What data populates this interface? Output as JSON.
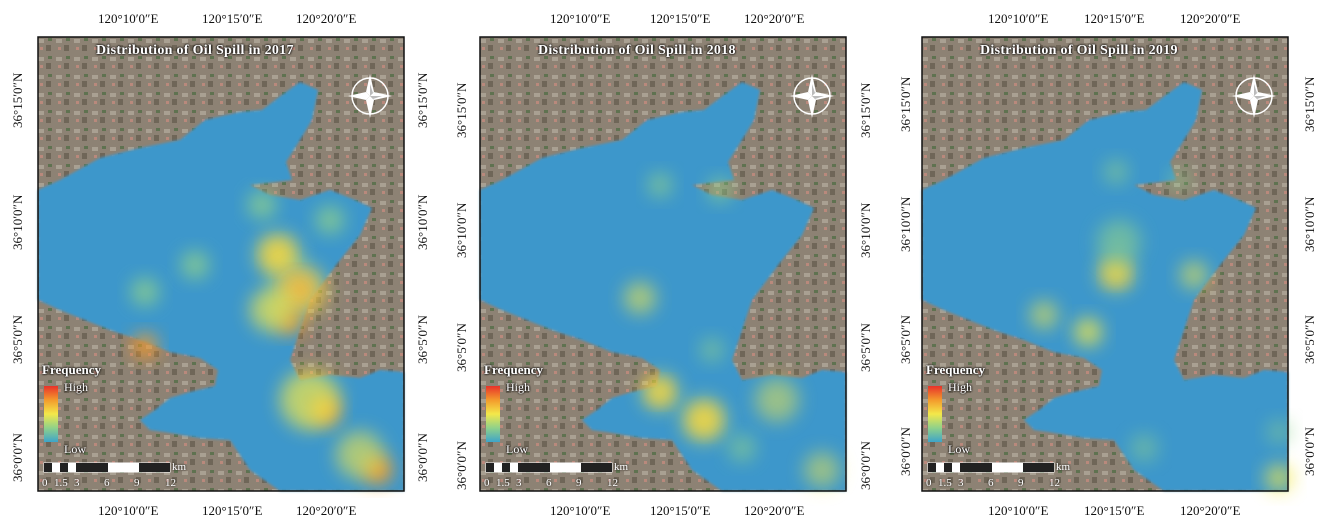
{
  "colors": {
    "water": "#3d97cb",
    "land": "#8d8274",
    "hot_high": "#e8322a",
    "hot_mid": "#f3e84a",
    "hot_low": "#8fd18a"
  },
  "axis": {
    "top_ticks": [
      "120°10′0″E",
      "120°15′0″E",
      "120°20′0″E"
    ],
    "bottom_ticks": [
      "120°10′0″E",
      "120°15′0″E",
      "120°20′0″E"
    ],
    "left_ticks": [
      "36°15′0″N",
      "36°10′0″N",
      "36°5′0″N",
      "36°0′0″N"
    ],
    "right_ticks": [
      "36°15′0″N",
      "36°10′0″N",
      "36°5′0″N",
      "36°0′0″N"
    ]
  },
  "legend": {
    "title": "Frequency",
    "high": "High",
    "low": "Low"
  },
  "scale": {
    "labels": [
      "0",
      "1.5",
      "3",
      "6",
      "9",
      "12"
    ],
    "unit": "km"
  },
  "compass": "compass-rose-icon",
  "panels": [
    {
      "title": "Distribution of Oil Spill in 2017"
    },
    {
      "title": "Distribution of Oil Spill in 2018"
    },
    {
      "title": "Distribution of Oil Spill in 2019"
    }
  ]
}
